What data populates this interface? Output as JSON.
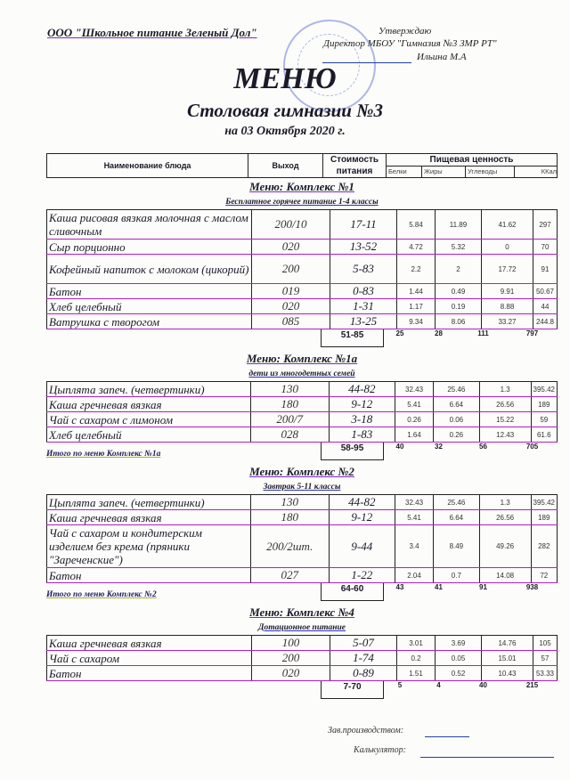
{
  "organization": "ООО \"Школьное питание Зеленый Дол\"",
  "approval": {
    "line1": "Утверждаю",
    "line2": "Директор МБОУ \"Гимназия №3 ЗМР РТ\"",
    "line3": "Ильина М.А"
  },
  "title": "МЕНЮ",
  "subtitle": "Столовая гимназии №3",
  "date": "на 03 Октября 2020 г.",
  "header": {
    "name": "Наименование блюда",
    "output": "Выход",
    "cost": "Стоимость питания",
    "nutrition": "Пищевая ценность",
    "proteins": "Белки",
    "fats": "Жиры",
    "carbs": "Углеводы",
    "kcal": "ККал"
  },
  "sections": [
    {
      "title": "Меню: Комплекс №1",
      "subtitle": "Бесплатное горячее питание  1-4 классы",
      "items": [
        [
          "Каша рисовая вязкая молочная с маслом сливочным",
          "200/10",
          "17-11",
          "5.84",
          "11.89",
          "41.62",
          "297"
        ],
        [
          "Сыр порционно",
          "020",
          "13-52",
          "4.72",
          "5.32",
          "0",
          "70"
        ],
        [
          "Кофейный напиток с молоком (цикорий)",
          "200",
          "5-83",
          "2.2",
          "2",
          "17.72",
          "91"
        ],
        [
          "Батон",
          "019",
          "0-83",
          "1.44",
          "0.49",
          "9.91",
          "50.67"
        ],
        [
          "Хлеб  целебный",
          "020",
          "1-31",
          "1.17",
          "0.19",
          "8.88",
          "44"
        ],
        [
          "Ватрушка с творогом",
          "085",
          "13-25",
          "9.34",
          "8.06",
          "33.27",
          "244.8"
        ]
      ],
      "total_label": "",
      "total": [
        "51-85",
        "25",
        "28",
        "111",
        "797"
      ]
    },
    {
      "title": "Меню: Комплекс №1а",
      "subtitle": "дети из многодетных семей",
      "items": [
        [
          "Цыплята запеч.  (четвертинки)",
          "130",
          "44-82",
          "32.43",
          "25.46",
          "1.3",
          "395.42"
        ],
        [
          "Каша гречневая вязкая",
          "180",
          "9-12",
          "5.41",
          "6.64",
          "26.56",
          "189"
        ],
        [
          "Чай с сахаром с лимоном",
          "200/7",
          "3-18",
          "0.26",
          "0.06",
          "15.22",
          "59"
        ],
        [
          "Хлеб  целебный",
          "028",
          "1-83",
          "1.64",
          "0.26",
          "12.43",
          "61.6"
        ]
      ],
      "total_label": "Итого по меню Комплекс №1а",
      "total": [
        "58-95",
        "40",
        "32",
        "56",
        "705"
      ]
    },
    {
      "title": "Меню: Комплекс №2",
      "subtitle": "Завтрак 5-11 классы",
      "items": [
        [
          "Цыплята запеч.  (четвертинки)",
          "130",
          "44-82",
          "32.43",
          "25.46",
          "1.3",
          "395.42"
        ],
        [
          "Каша гречневая вязкая",
          "180",
          "9-12",
          "5.41",
          "6.64",
          "26.56",
          "189"
        ],
        [
          "Чай с сахаром и кондитерским изделием без крема (пряники \"Зареченские\")",
          "200/2шт.",
          "9-44",
          "3.4",
          "8.49",
          "49.26",
          "282"
        ],
        [
          "Батон",
          "027",
          "1-22",
          "2.04",
          "0.7",
          "14.08",
          "72"
        ]
      ],
      "total_label": "Итого по меню Комплекс №2",
      "total": [
        "64-60",
        "43",
        "41",
        "91",
        "938"
      ]
    },
    {
      "title": "Меню: Комплекс №4",
      "subtitle": "Дотационное питание",
      "items": [
        [
          "Каша гречневая вязкая",
          "100",
          "5-07",
          "3.01",
          "3.69",
          "14.76",
          "105"
        ],
        [
          "Чай с сахаром",
          "200",
          "1-74",
          "0.2",
          "0.05",
          "15.01",
          "57"
        ],
        [
          "Батон",
          "020",
          "0-89",
          "1.51",
          "0.52",
          "10.43",
          "53.33"
        ]
      ],
      "total_label": "",
      "total": [
        "7-70",
        "5",
        "4",
        "40",
        "215"
      ]
    }
  ],
  "signatures": {
    "production": "Зав.производством:",
    "calculator": "Калькулятор:"
  }
}
